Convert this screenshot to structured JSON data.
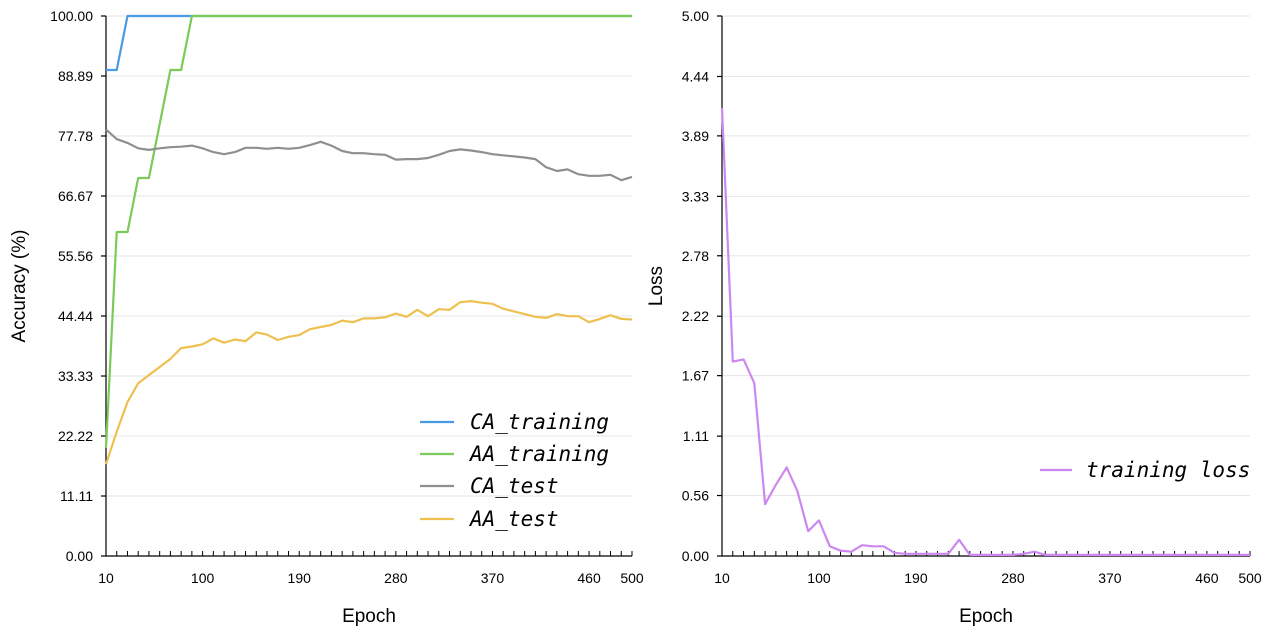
{
  "chart_data": [
    {
      "type": "line",
      "title": "",
      "xlabel": "Epoch",
      "ylabel": "Accuracy (%)",
      "xlim": [
        10,
        500
      ],
      "ylim": [
        0,
        100
      ],
      "xticks": [
        10,
        100,
        190,
        280,
        370,
        460,
        500
      ],
      "yticks": [
        0.0,
        11.11,
        22.22,
        33.33,
        44.44,
        55.56,
        66.67,
        77.78,
        88.89,
        100.0
      ],
      "ytick_labels": [
        "0.00",
        "11.11",
        "22.22",
        "33.33",
        "44.44",
        "55.56",
        "66.67",
        "77.78",
        "88.89",
        "100.00"
      ],
      "grid": true,
      "legend_position": "bottom-right",
      "series": [
        {
          "name": "CA_training",
          "color": "#4a9be3",
          "points": [
            [
              10,
              90
            ],
            [
              20,
              90
            ],
            [
              30,
              100
            ],
            [
              500,
              100
            ]
          ]
        },
        {
          "name": "AA_training",
          "color": "#7acb57",
          "points": [
            [
              10,
              20
            ],
            [
              20,
              60
            ],
            [
              30,
              60
            ],
            [
              40,
              70
            ],
            [
              50,
              70
            ],
            [
              60,
              80
            ],
            [
              70,
              90
            ],
            [
              80,
              90
            ],
            [
              90,
              100
            ],
            [
              500,
              100
            ]
          ]
        },
        {
          "name": "CA_test",
          "color": "#8f8f8f",
          "points": [
            [
              10,
              79
            ],
            [
              20,
              77.2
            ],
            [
              30,
              76.5
            ],
            [
              40,
              75.5
            ],
            [
              50,
              75.2
            ],
            [
              60,
              75.5
            ],
            [
              70,
              75.7
            ],
            [
              80,
              75.8
            ],
            [
              90,
              76
            ],
            [
              100,
              75.5
            ],
            [
              110,
              74.8
            ],
            [
              120,
              74.4
            ],
            [
              130,
              74.8
            ],
            [
              140,
              75.6
            ],
            [
              150,
              75.6
            ],
            [
              160,
              75.4
            ],
            [
              170,
              75.6
            ],
            [
              180,
              75.4
            ],
            [
              190,
              75.6
            ],
            [
              200,
              76.1
            ],
            [
              210,
              76.7
            ],
            [
              220,
              76.0
            ],
            [
              230,
              75.0
            ],
            [
              240,
              74.6
            ],
            [
              250,
              74.6
            ],
            [
              260,
              74.4
            ],
            [
              270,
              74.3
            ],
            [
              280,
              73.4
            ],
            [
              290,
              73.5
            ],
            [
              300,
              73.5
            ],
            [
              310,
              73.7
            ],
            [
              320,
              74.3
            ],
            [
              330,
              75.0
            ],
            [
              340,
              75.3
            ],
            [
              350,
              75.1
            ],
            [
              360,
              74.8
            ],
            [
              370,
              74.4
            ],
            [
              380,
              74.2
            ],
            [
              390,
              74.0
            ],
            [
              400,
              73.8
            ],
            [
              410,
              73.5
            ],
            [
              420,
              72.0
            ],
            [
              430,
              71.3
            ],
            [
              440,
              71.6
            ],
            [
              450,
              70.7
            ],
            [
              460,
              70.4
            ],
            [
              470,
              70.4
            ],
            [
              480,
              70.6
            ],
            [
              490,
              69.6
            ],
            [
              500,
              70.2
            ]
          ]
        },
        {
          "name": "AA_test",
          "color": "#eec04f",
          "points": [
            [
              10,
              17
            ],
            [
              20,
              23
            ],
            [
              30,
              28.5
            ],
            [
              40,
              32
            ],
            [
              50,
              33.5
            ],
            [
              60,
              35
            ],
            [
              70,
              36.5
            ],
            [
              80,
              38.5
            ],
            [
              90,
              38.8
            ],
            [
              100,
              39.2
            ],
            [
              110,
              40.3
            ],
            [
              120,
              39.5
            ],
            [
              130,
              40.1
            ],
            [
              140,
              39.8
            ],
            [
              150,
              41.4
            ],
            [
              160,
              41.0
            ],
            [
              170,
              40.0
            ],
            [
              180,
              40.6
            ],
            [
              190,
              40.9
            ],
            [
              200,
              42.0
            ],
            [
              210,
              42.4
            ],
            [
              220,
              42.8
            ],
            [
              230,
              43.6
            ],
            [
              240,
              43.3
            ],
            [
              250,
              44.0
            ],
            [
              260,
              44.0
            ],
            [
              270,
              44.2
            ],
            [
              280,
              44.9
            ],
            [
              290,
              44.3
            ],
            [
              300,
              45.6
            ],
            [
              310,
              44.4
            ],
            [
              320,
              45.7
            ],
            [
              330,
              45.6
            ],
            [
              340,
              47.0
            ],
            [
              350,
              47.2
            ],
            [
              360,
              46.9
            ],
            [
              370,
              46.7
            ],
            [
              380,
              45.8
            ],
            [
              390,
              45.3
            ],
            [
              400,
              44.8
            ],
            [
              410,
              44.3
            ],
            [
              420,
              44.1
            ],
            [
              430,
              44.8
            ],
            [
              440,
              44.4
            ],
            [
              450,
              44.4
            ],
            [
              460,
              43.3
            ],
            [
              470,
              43.9
            ],
            [
              480,
              44.6
            ],
            [
              490,
              43.9
            ],
            [
              500,
              43.8
            ]
          ]
        }
      ]
    },
    {
      "type": "line",
      "title": "",
      "xlabel": "Epoch",
      "ylabel": "Loss",
      "xlim": [
        10,
        500
      ],
      "ylim": [
        0,
        5
      ],
      "xticks": [
        10,
        100,
        190,
        280,
        370,
        460,
        500
      ],
      "yticks": [
        0.0,
        0.56,
        1.11,
        1.67,
        2.22,
        2.78,
        3.33,
        3.89,
        4.44,
        5.0
      ],
      "ytick_labels": [
        "0.00",
        "0.56",
        "1.11",
        "1.67",
        "2.22",
        "2.78",
        "3.33",
        "3.89",
        "4.44",
        "5.00"
      ],
      "grid": true,
      "legend_position": "center-right",
      "series": [
        {
          "name": "training loss",
          "color": "#cc88f0",
          "points": [
            [
              10,
              4.15
            ],
            [
              20,
              1.8
            ],
            [
              30,
              1.82
            ],
            [
              40,
              1.6
            ],
            [
              50,
              0.48
            ],
            [
              60,
              0.66
            ],
            [
              70,
              0.82
            ],
            [
              80,
              0.6
            ],
            [
              90,
              0.23
            ],
            [
              100,
              0.33
            ],
            [
              110,
              0.09
            ],
            [
              120,
              0.05
            ],
            [
              130,
              0.04
            ],
            [
              140,
              0.1
            ],
            [
              150,
              0.09
            ],
            [
              160,
              0.09
            ],
            [
              170,
              0.03
            ],
            [
              180,
              0.02
            ],
            [
              190,
              0.02
            ],
            [
              200,
              0.02
            ],
            [
              210,
              0.02
            ],
            [
              220,
              0.02
            ],
            [
              230,
              0.15
            ],
            [
              240,
              0.01
            ],
            [
              250,
              0.01
            ],
            [
              260,
              0.01
            ],
            [
              270,
              0.01
            ],
            [
              280,
              0.01
            ],
            [
              290,
              0.02
            ],
            [
              300,
              0.04
            ],
            [
              310,
              0.01
            ],
            [
              320,
              0.01
            ],
            [
              330,
              0.01
            ],
            [
              340,
              0.01
            ],
            [
              350,
              0.01
            ],
            [
              360,
              0.01
            ],
            [
              370,
              0.01
            ],
            [
              380,
              0.01
            ],
            [
              390,
              0.01
            ],
            [
              400,
              0.01
            ],
            [
              410,
              0.01
            ],
            [
              420,
              0.01
            ],
            [
              430,
              0.01
            ],
            [
              440,
              0.01
            ],
            [
              450,
              0.01
            ],
            [
              460,
              0.01
            ],
            [
              470,
              0.01
            ],
            [
              480,
              0.01
            ],
            [
              490,
              0.01
            ],
            [
              500,
              0.01
            ]
          ]
        }
      ]
    }
  ]
}
